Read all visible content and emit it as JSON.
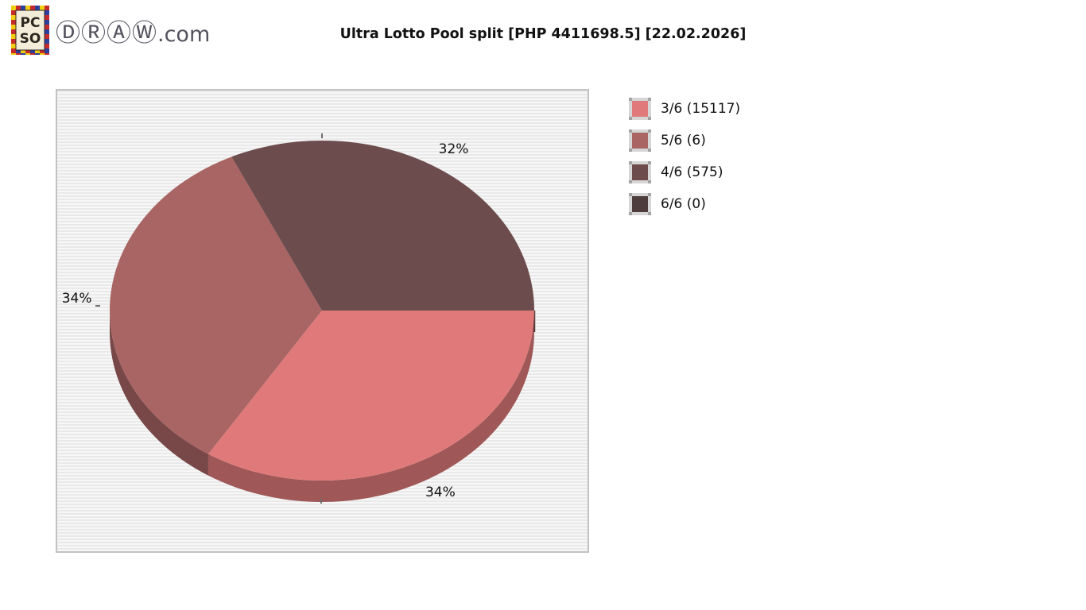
{
  "logo": {
    "icon_line1": "PC",
    "icon_line2": "SO",
    "site_circled": "ⒹⓇⒶⓌ",
    "site_suffix": ".com"
  },
  "header": {
    "title": "Ultra Lotto Pool split [PHP 4411698.5] [22.02.2026]"
  },
  "chart_data": {
    "type": "pie",
    "title": "Ultra Lotto Pool split [PHP 4411698.5] [22.02.2026]",
    "pool_amount_php": 4411698.5,
    "draw_date": "22.02.2026",
    "effect_3d": true,
    "start_angle_deg": 0,
    "direction": "clockwise",
    "legend_position": "right",
    "slices": [
      {
        "label": "3/6",
        "count": 15117,
        "percent": 34,
        "pct_label": "34%",
        "color": "#e07a7a"
      },
      {
        "label": "5/6",
        "count": 6,
        "percent": 34,
        "pct_label": "34%",
        "color": "#a96464"
      },
      {
        "label": "4/6",
        "count": 575,
        "percent": 32,
        "pct_label": "32%",
        "color": "#6c4c4c"
      },
      {
        "label": "6/6",
        "count": 0,
        "percent": 0,
        "pct_label": "",
        "color": "#4e3d3d"
      }
    ],
    "legend": [
      {
        "label": "3/6 (15117)",
        "color": "#e07a7a"
      },
      {
        "label": "5/6 (6)",
        "color": "#a96464"
      },
      {
        "label": "4/6 (575)",
        "color": "#6c4c4c"
      },
      {
        "label": "6/6 (0)",
        "color": "#4e3d3d"
      }
    ]
  }
}
